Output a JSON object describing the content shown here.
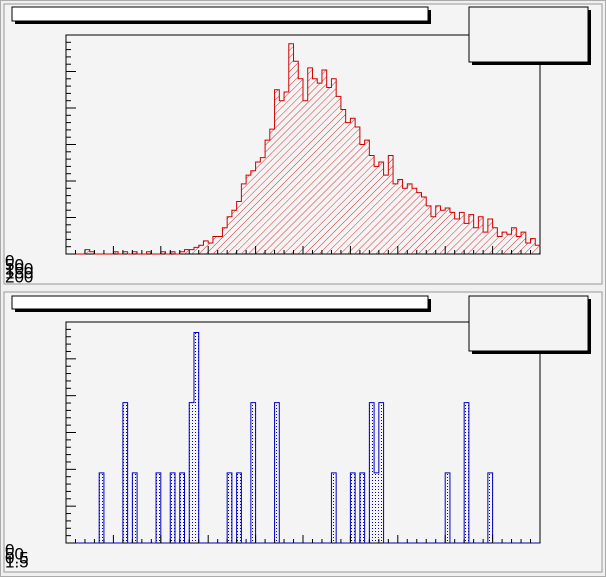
{
  "chart_data": [
    {
      "type": "histogram",
      "color": "#d00000",
      "fill_pattern": "hatch",
      "xlim": [
        0,
        100
      ],
      "ylim": [
        0,
        100
      ],
      "axis_labels": [
        "0",
        "50",
        "100",
        "150",
        "200"
      ],
      "bins": [
        0,
        1,
        2,
        3,
        4,
        5,
        6,
        7,
        8,
        9,
        10,
        11,
        12,
        13,
        14,
        15,
        16,
        17,
        18,
        19,
        20,
        21,
        22,
        23,
        24,
        25,
        26,
        27,
        28,
        29,
        30,
        31,
        32,
        33,
        34,
        35,
        36,
        37,
        38,
        39,
        40,
        41,
        42,
        43,
        44,
        45,
        46,
        47,
        48,
        49,
        50,
        51,
        52,
        53,
        54,
        55,
        56,
        57,
        58,
        59,
        60,
        61,
        62,
        63,
        64,
        65,
        66,
        67,
        68,
        69,
        70,
        71,
        72,
        73,
        74,
        75,
        76,
        77,
        78,
        79,
        80,
        81,
        82,
        83,
        84,
        85,
        86,
        87,
        88,
        89,
        90,
        91,
        92,
        93,
        94,
        95,
        96,
        97,
        98,
        99,
        100
      ],
      "values": [
        0,
        0,
        0,
        0,
        2,
        1,
        0,
        0,
        0,
        0,
        1,
        0,
        1,
        0,
        1,
        0,
        0,
        1,
        0,
        0,
        1,
        0,
        1,
        0,
        1,
        2,
        2,
        3,
        4,
        6,
        5,
        8,
        8,
        12,
        17,
        20,
        24,
        32,
        36,
        38,
        42,
        44,
        52,
        57,
        75,
        70,
        74,
        96,
        88,
        80,
        70,
        85,
        80,
        78,
        84,
        76,
        80,
        72,
        66,
        60,
        62,
        58,
        50,
        52,
        45,
        40,
        42,
        36,
        45,
        32,
        34,
        30,
        32,
        30,
        28,
        26,
        22,
        17,
        22,
        20,
        21,
        19,
        16,
        19,
        14,
        18,
        12,
        17,
        10,
        16,
        12,
        8,
        10,
        9,
        12,
        8,
        10,
        5,
        7,
        4
      ]
    },
    {
      "type": "histogram",
      "color": "#0000c0",
      "fill_pattern": "dots",
      "xlim": [
        0,
        100
      ],
      "ylim": [
        0,
        3.15
      ],
      "axis_labels": [
        "0",
        "50",
        "0.5",
        "1.5"
      ],
      "bins": [
        0,
        1,
        2,
        3,
        4,
        5,
        6,
        7,
        8,
        9,
        10,
        11,
        12,
        13,
        14,
        15,
        16,
        17,
        18,
        19,
        20,
        21,
        22,
        23,
        24,
        25,
        26,
        27,
        28,
        29,
        30,
        31,
        32,
        33,
        34,
        35,
        36,
        37,
        38,
        39,
        40,
        41,
        42,
        43,
        44,
        45,
        46,
        47,
        48,
        49,
        50,
        51,
        52,
        53,
        54,
        55,
        56,
        57,
        58,
        59,
        60,
        61,
        62,
        63,
        64,
        65,
        66,
        67,
        68,
        69,
        70,
        71,
        72,
        73,
        74,
        75,
        76,
        77,
        78,
        79,
        80,
        81,
        82,
        83,
        84,
        85,
        86,
        87,
        88,
        89,
        90,
        91,
        92,
        93,
        94,
        95,
        96,
        97,
        98,
        99,
        100
      ],
      "values": [
        0,
        0,
        0,
        0,
        0,
        0,
        0,
        1,
        0,
        0,
        0,
        0,
        2,
        0,
        1,
        0,
        0,
        0,
        0,
        1,
        0,
        0,
        1,
        0,
        1,
        0,
        2,
        3,
        0,
        0,
        0,
        0,
        0,
        0,
        1,
        0,
        1,
        0,
        0,
        2,
        0,
        0,
        0,
        0,
        2,
        0,
        0,
        0,
        0,
        0,
        0,
        0,
        0,
        0,
        0,
        0,
        1,
        0,
        0,
        0,
        1,
        0,
        1,
        0,
        2,
        1,
        2,
        0,
        0,
        0,
        0,
        0,
        0,
        0,
        0,
        0,
        0,
        0,
        0,
        0,
        1,
        0,
        0,
        0,
        2,
        0,
        0,
        0,
        0,
        1,
        0,
        0,
        0,
        0,
        0,
        0,
        0,
        0,
        0,
        0
      ]
    }
  ]
}
